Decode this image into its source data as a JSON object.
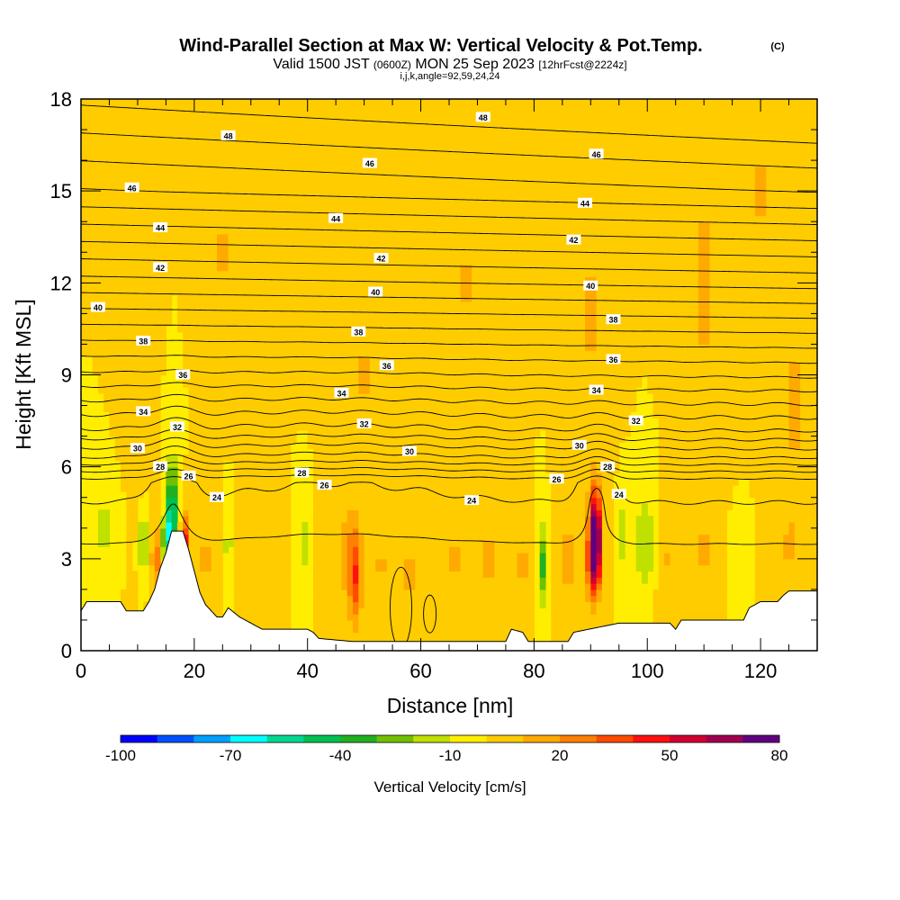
{
  "chart_data": {
    "type": "heatmap",
    "title": "Wind-Parallel Section at Max W: Vertical Velocity & Pot.Temp.",
    "title_mark": "(C)",
    "subtitle": {
      "valid_prefix": "Valid 1500 JST",
      "utc": "(0600Z)",
      "date": "MON 25 Sep 2023",
      "forecast": "[12hrFcst@2224z]"
    },
    "subtitle2": "i,j,k,angle=92,59,24,24",
    "xlabel": "Distance [nm]",
    "ylabel": "Height [Kft MSL]",
    "xlim": [
      0,
      130
    ],
    "ylim": [
      0,
      18
    ],
    "x_ticks": [
      0,
      20,
      40,
      60,
      80,
      100,
      120
    ],
    "x_tick_labels": [
      "0",
      "20",
      "40",
      "60",
      "80",
      "100",
      "120"
    ],
    "y_ticks": [
      0,
      3,
      6,
      9,
      12,
      15,
      18
    ],
    "y_tick_labels": [
      "0",
      "3",
      "6",
      "9",
      "12",
      "15",
      "18"
    ],
    "colorbar": {
      "label": "Vertical Velocity [cm/s]",
      "min": -100,
      "max": 80,
      "step": 10,
      "tick_values": [
        -100,
        -70,
        -40,
        -10,
        20,
        50,
        80
      ],
      "tick_labels": [
        "-100",
        "-70",
        "-40",
        "-10",
        "20",
        "50",
        "80"
      ],
      "colors": [
        "#0000ff",
        "#0050ff",
        "#00a0ff",
        "#00ffff",
        "#00d890",
        "#00c050",
        "#20b020",
        "#70c000",
        "#c0e000",
        "#ffee00",
        "#ffcc00",
        "#ffaa00",
        "#ff7f00",
        "#ff4a00",
        "#ff1010",
        "#d00030",
        "#a00050",
        "#600080"
      ]
    },
    "background_level": 0,
    "velocity_features": [
      {
        "x": 16,
        "y": 4.5,
        "w": -60,
        "sx": 0.9,
        "sy": 1.6
      },
      {
        "x": 15,
        "y": 3.6,
        "w": -80,
        "sx": 0.5,
        "sy": 0.8
      },
      {
        "x": 18.5,
        "y": 3.4,
        "w": 45,
        "sx": 0.7,
        "sy": 1.0
      },
      {
        "x": 13.5,
        "y": 3.0,
        "w": 22,
        "sx": 1.2,
        "sy": 1.2
      },
      {
        "x": 11,
        "y": 3.5,
        "w": -25,
        "sx": 0.8,
        "sy": 1.0
      },
      {
        "x": 4,
        "y": 4.0,
        "w": -15,
        "sx": 2.0,
        "sy": 1.0
      },
      {
        "x": 22,
        "y": 3.0,
        "w": 12,
        "sx": 1.5,
        "sy": 1.6
      },
      {
        "x": 26,
        "y": 3.4,
        "w": -15,
        "sx": 0.8,
        "sy": 1.2
      },
      {
        "x": 30,
        "y": 3.0,
        "w": 10,
        "sx": 1.6,
        "sy": 1.5
      },
      {
        "x": 39.5,
        "y": 3.5,
        "w": -18,
        "sx": 0.7,
        "sy": 1.0
      },
      {
        "x": 48.5,
        "y": 2.4,
        "w": 35,
        "sx": 1.1,
        "sy": 1.5
      },
      {
        "x": 47,
        "y": 3.2,
        "w": 15,
        "sx": 2.0,
        "sy": 1.8
      },
      {
        "x": 53,
        "y": 2.8,
        "w": 12,
        "sx": 1.2,
        "sy": 1.4
      },
      {
        "x": 58,
        "y": 2.5,
        "w": 16,
        "sx": 1.0,
        "sy": 1.2
      },
      {
        "x": 66,
        "y": 3.0,
        "w": 12,
        "sx": 1.5,
        "sy": 1.5
      },
      {
        "x": 72,
        "y": 3.0,
        "w": 12,
        "sx": 2.0,
        "sy": 1.5
      },
      {
        "x": 78,
        "y": 2.8,
        "w": 14,
        "sx": 1.2,
        "sy": 1.2
      },
      {
        "x": 81.5,
        "y": 2.8,
        "w": -35,
        "sx": 0.55,
        "sy": 1.2
      },
      {
        "x": 86,
        "y": 3.0,
        "w": 15,
        "sx": 1.5,
        "sy": 1.5
      },
      {
        "x": 90.8,
        "y": 3.9,
        "w": 82,
        "sx": 1.0,
        "sy": 1.4
      },
      {
        "x": 90.5,
        "y": 2.8,
        "w": 38,
        "sx": 1.4,
        "sy": 1.2
      },
      {
        "x": 95.5,
        "y": 3.8,
        "w": -15,
        "sx": 0.8,
        "sy": 1.2
      },
      {
        "x": 99.5,
        "y": 3.5,
        "w": -20,
        "sx": 1.6,
        "sy": 1.5
      },
      {
        "x": 103,
        "y": 3.0,
        "w": 12,
        "sx": 1.2,
        "sy": 1.4
      },
      {
        "x": 110,
        "y": 3.2,
        "w": 12,
        "sx": 1.5,
        "sy": 1.5
      },
      {
        "x": 116,
        "y": 3.2,
        "w": -10,
        "sx": 1.0,
        "sy": 1.0
      },
      {
        "x": 125,
        "y": 3.4,
        "w": 10,
        "sx": 2.0,
        "sy": 1.0
      },
      {
        "x": 10,
        "y": 10,
        "w": 11,
        "sx": 1.5,
        "sy": 4.0
      },
      {
        "x": 25,
        "y": 13,
        "w": 11,
        "sx": 2.0,
        "sy": 3.0
      },
      {
        "x": 50,
        "y": 9,
        "w": 11,
        "sx": 3.0,
        "sy": 2.0
      },
      {
        "x": 68,
        "y": 12,
        "w": 11,
        "sx": 2.0,
        "sy": 3.5
      },
      {
        "x": 90,
        "y": 11,
        "w": 11,
        "sx": 2.5,
        "sy": 5.0
      },
      {
        "x": 110,
        "y": 12,
        "w": 12,
        "sx": 3.0,
        "sy": 5.0
      },
      {
        "x": 120,
        "y": 15,
        "w": 11,
        "sx": 3.0,
        "sy": 3.0
      },
      {
        "x": 126,
        "y": 8,
        "w": 12,
        "sx": 2.0,
        "sy": 4.0
      }
    ],
    "terrain": [
      [
        0,
        1.3
      ],
      [
        1,
        1.6
      ],
      [
        3,
        1.6
      ],
      [
        5,
        1.6
      ],
      [
        7,
        1.6
      ],
      [
        8,
        1.3
      ],
      [
        11,
        1.3
      ],
      [
        12,
        1.6
      ],
      [
        13,
        2.0
      ],
      [
        14,
        2.7
      ],
      [
        15,
        3.2
      ],
      [
        16,
        3.9
      ],
      [
        18,
        3.9
      ],
      [
        19,
        3.3
      ],
      [
        20,
        2.6
      ],
      [
        21,
        1.9
      ],
      [
        22,
        1.5
      ],
      [
        24,
        1.1
      ],
      [
        25,
        1.1
      ],
      [
        26,
        1.4
      ],
      [
        28,
        1.1
      ],
      [
        30,
        0.9
      ],
      [
        32,
        0.7
      ],
      [
        40,
        0.7
      ],
      [
        41,
        0.6
      ],
      [
        42,
        0.4
      ],
      [
        48,
        0.3
      ],
      [
        56,
        0.3
      ],
      [
        60,
        0.3
      ],
      [
        65,
        0.3
      ],
      [
        70,
        0.3
      ],
      [
        75,
        0.3
      ],
      [
        76,
        0.7
      ],
      [
        78,
        0.6
      ],
      [
        79,
        0.3
      ],
      [
        86,
        0.3
      ],
      [
        87,
        0.6
      ],
      [
        95,
        0.9
      ],
      [
        104,
        0.9
      ],
      [
        105,
        0.7
      ],
      [
        106,
        1.0
      ],
      [
        117,
        1.0
      ],
      [
        118,
        1.4
      ],
      [
        120,
        1.6
      ],
      [
        123,
        1.6
      ],
      [
        124,
        1.8
      ],
      [
        125,
        1.95
      ],
      [
        130,
        1.95
      ]
    ],
    "theta_levels": [
      24,
      26,
      28,
      30,
      32,
      34,
      36,
      38,
      40,
      42,
      44,
      46,
      48
    ],
    "theta_contour_labels": [
      {
        "text": "24",
        "x": 24,
        "y": 5.0
      },
      {
        "text": "24",
        "x": 69,
        "y": 4.9
      },
      {
        "text": "24",
        "x": 95,
        "y": 5.1
      },
      {
        "text": "26",
        "x": 19,
        "y": 5.7
      },
      {
        "text": "26",
        "x": 43,
        "y": 5.4
      },
      {
        "text": "26",
        "x": 84,
        "y": 5.6
      },
      {
        "text": "28",
        "x": 14,
        "y": 6.0
      },
      {
        "text": "28",
        "x": 39,
        "y": 5.8
      },
      {
        "text": "28",
        "x": 93,
        "y": 6.0
      },
      {
        "text": "30",
        "x": 10,
        "y": 6.6
      },
      {
        "text": "30",
        "x": 58,
        "y": 6.5
      },
      {
        "text": "30",
        "x": 88,
        "y": 6.7
      },
      {
        "text": "32",
        "x": 17,
        "y": 7.3
      },
      {
        "text": "32",
        "x": 50,
        "y": 7.4
      },
      {
        "text": "32",
        "x": 98,
        "y": 7.5
      },
      {
        "text": "34",
        "x": 11,
        "y": 7.8
      },
      {
        "text": "34",
        "x": 46,
        "y": 8.4
      },
      {
        "text": "34",
        "x": 91,
        "y": 8.5
      },
      {
        "text": "36",
        "x": 18,
        "y": 9.0
      },
      {
        "text": "36",
        "x": 54,
        "y": 9.3
      },
      {
        "text": "36",
        "x": 94,
        "y": 9.5
      },
      {
        "text": "38",
        "x": 11,
        "y": 10.1
      },
      {
        "text": "38",
        "x": 49,
        "y": 10.4
      },
      {
        "text": "38",
        "x": 94,
        "y": 10.8
      },
      {
        "text": "40",
        "x": 3,
        "y": 11.2
      },
      {
        "text": "40",
        "x": 52,
        "y": 11.7
      },
      {
        "text": "40",
        "x": 90,
        "y": 11.9
      },
      {
        "text": "42",
        "x": 14,
        "y": 12.5
      },
      {
        "text": "42",
        "x": 53,
        "y": 12.8
      },
      {
        "text": "42",
        "x": 87,
        "y": 13.4
      },
      {
        "text": "44",
        "x": 14,
        "y": 13.8
      },
      {
        "text": "44",
        "x": 45,
        "y": 14.1
      },
      {
        "text": "44",
        "x": 89,
        "y": 14.6
      },
      {
        "text": "46",
        "x": 9,
        "y": 15.1
      },
      {
        "text": "46",
        "x": 51,
        "y": 15.9
      },
      {
        "text": "46",
        "x": 91,
        "y": 16.2
      },
      {
        "text": "48",
        "x": 26,
        "y": 16.8
      },
      {
        "text": "48",
        "x": 71,
        "y": 17.4
      }
    ]
  }
}
